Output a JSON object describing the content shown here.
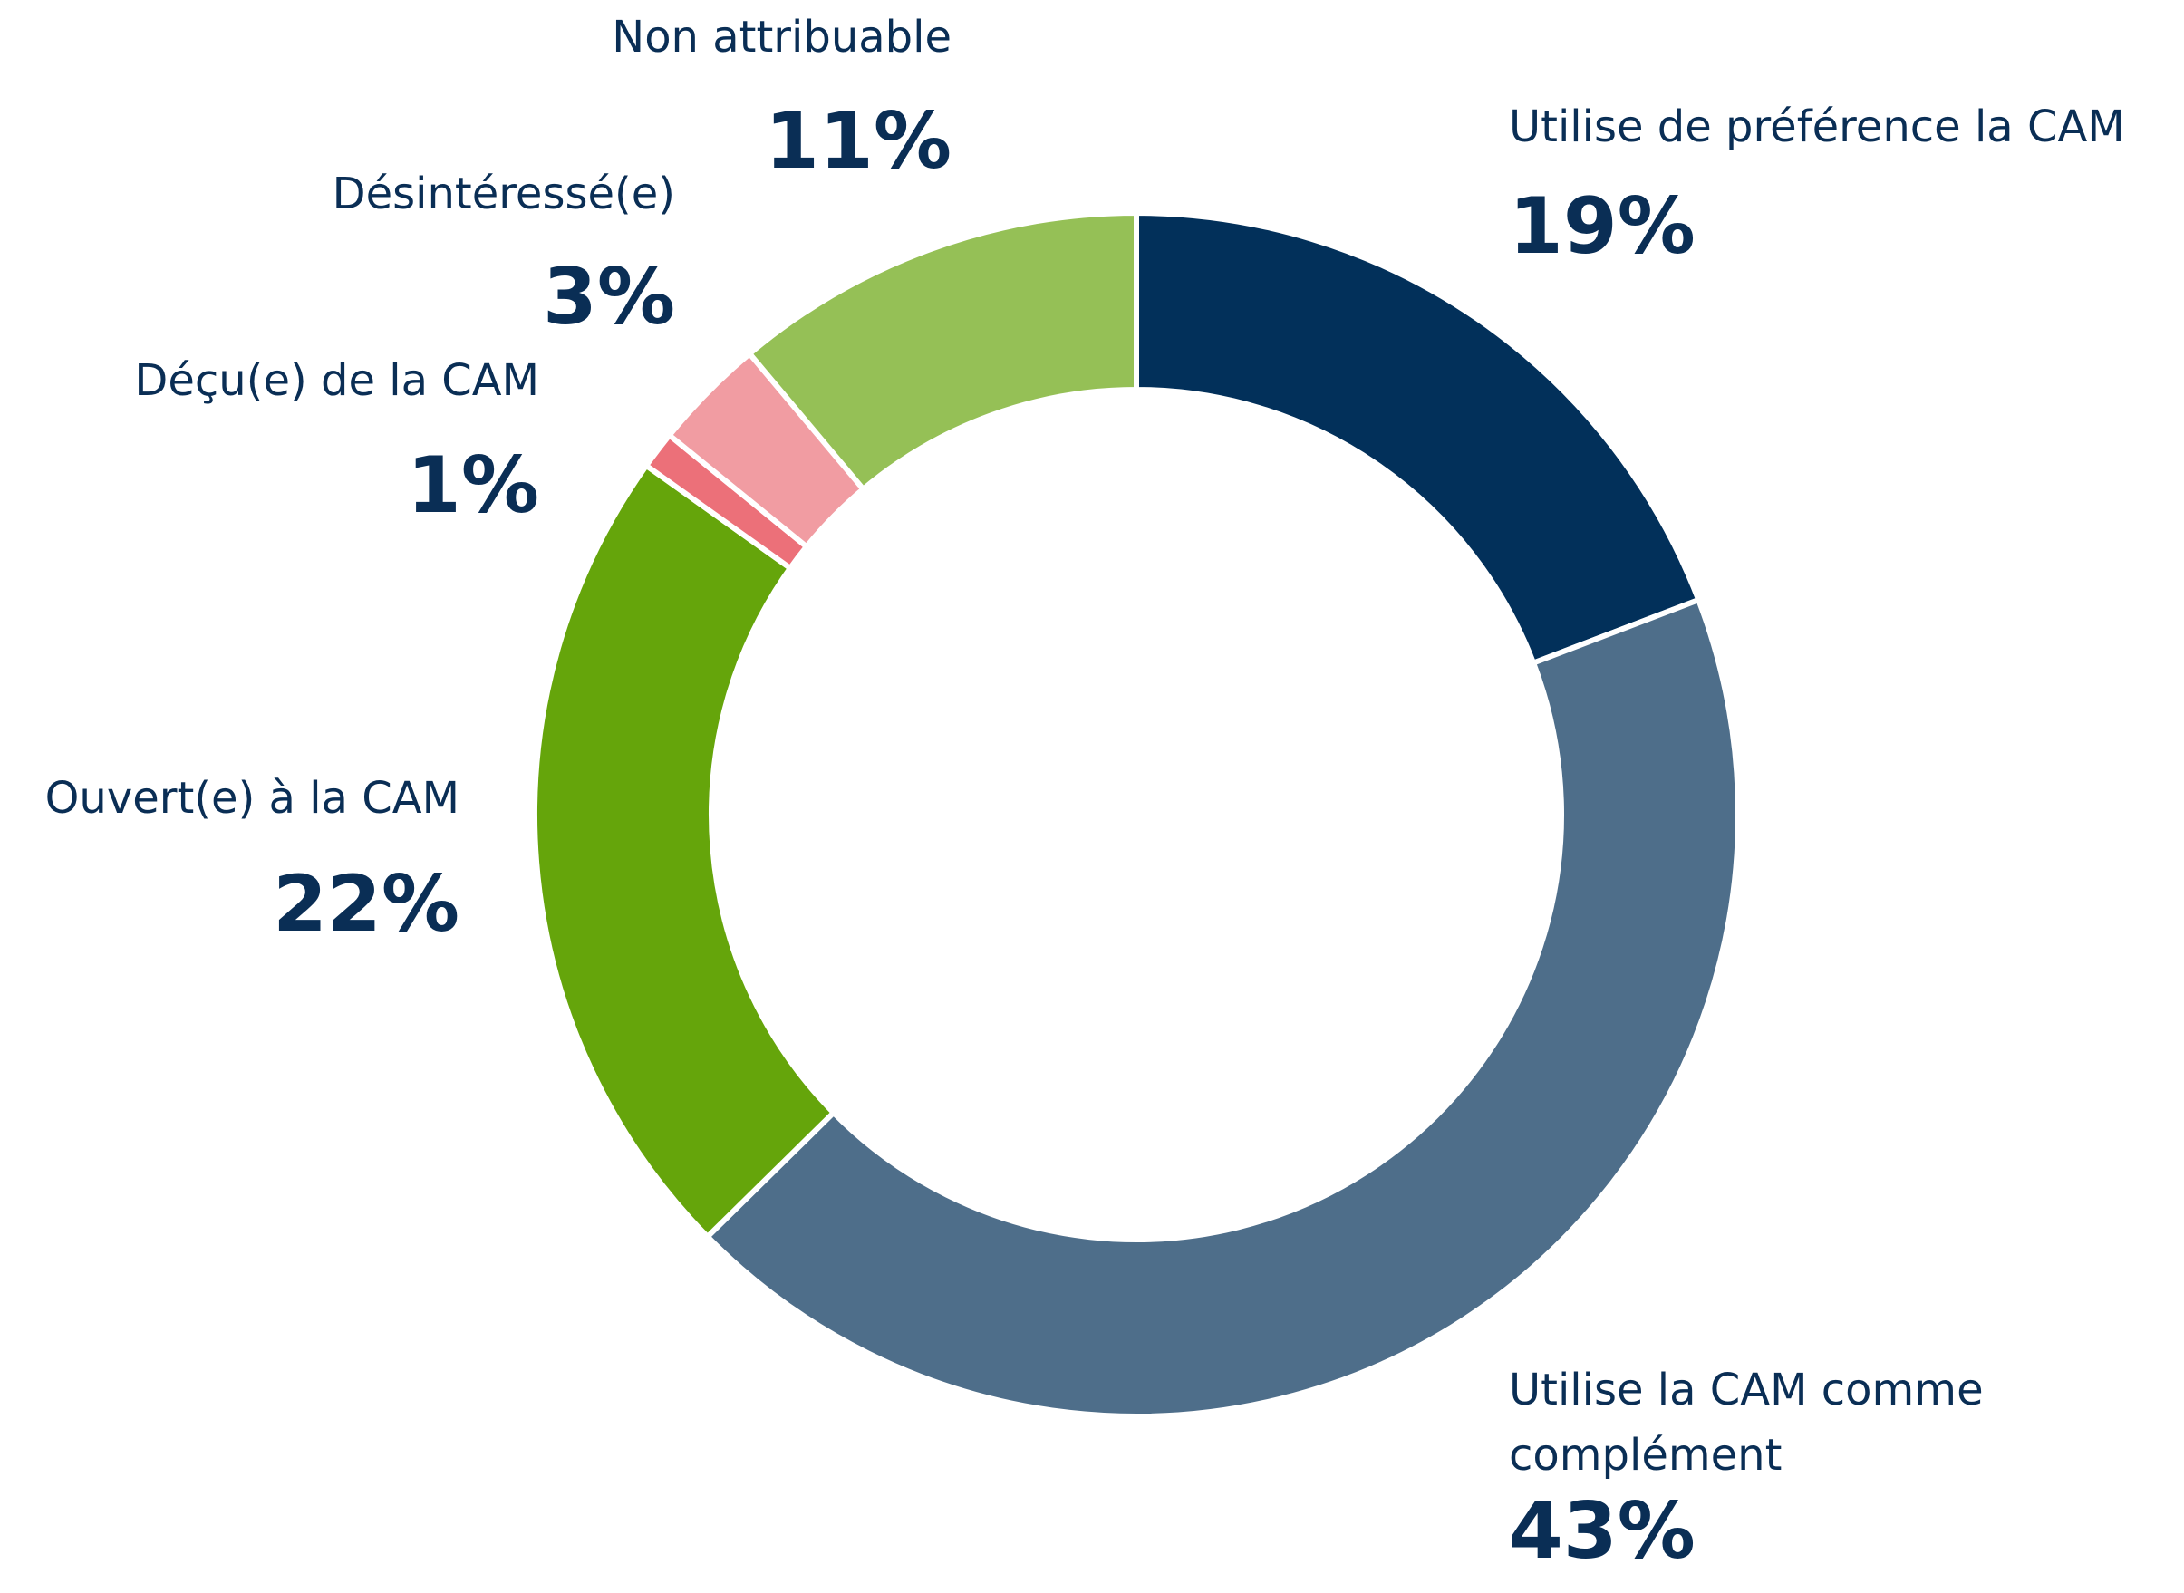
{
  "chart_data": {
    "type": "donut",
    "categories": [
      "Utilise de préférence la CAM",
      "Utilise la CAM comme complément",
      "Ouvert(e) à la CAM",
      "Déçu(e) de la CAM",
      "Désintéressé(e)",
      "Non attribuable"
    ],
    "values": [
      19,
      43,
      22,
      1,
      3,
      11
    ],
    "value_labels": [
      "19%",
      "43%",
      "22%",
      "1%",
      "3%",
      "11%"
    ],
    "colors": [
      "#02305a",
      "#4e6e8a",
      "#65a50b",
      "#ec7079",
      "#f19ca2",
      "#95c056"
    ]
  }
}
